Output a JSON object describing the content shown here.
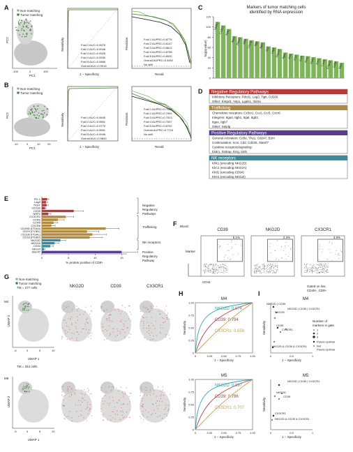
{
  "panels": {
    "A": {
      "label": "A",
      "legend": [
        "Non-matching",
        "Tumor matching"
      ],
      "pca_xlabel": "PC1",
      "pca_ylabel": "PC2",
      "pca_xticks": [
        "-100",
        "0",
        "100"
      ],
      "roc_xlabel": "1 − Specificity",
      "roc_ylabel": "Sensitivity",
      "roc_legend": [
        "Fold 1 AUC=0.9878",
        "Fold 2 AUC=0.9948",
        "Fold 3 AUC=0.9925",
        "Fold 4 AUC=0.9930",
        "Fold 5 AUC=0.9886",
        "Overall AUC=0.9916"
      ],
      "pr_xlabel": "Recall",
      "pr_ylabel": "Precision",
      "pr_legend": [
        "Fold 1 AUPRC=0.8776",
        "Fold 2 AUPRC=0.8147",
        "Fold 3 AUPRC=0.8812",
        "Fold 4 AUPRC=0.8758",
        "Fold 5 AUPRC=0.8532",
        "Overall AUPRC=0.8492",
        "No skill"
      ]
    },
    "B": {
      "label": "B",
      "legend": [
        "Non-matching",
        "Tumor matching"
      ],
      "pca_xlabel": "PC1",
      "pca_ylabel": "PC2",
      "pca_xticks": [
        "-10",
        "0",
        "10",
        "20"
      ],
      "roc_xlabel": "1 − Specificity",
      "roc_ylabel": "Sensitivity",
      "roc_legend": [
        "Fold 1 AUC=0.9845",
        "Fold 2 AUC=0.9801",
        "Fold 3 AUC=0.9770",
        "Fold 4 AUC=0.9891",
        "Fold 5 AUC=0.9946",
        "Overall AUC=0.9849"
      ],
      "pr_xlabel": "Recall",
      "pr_ylabel": "Precision",
      "pr_legend": [
        "Fold 1 AUPRC=0.7098",
        "Fold 2 AUPRC=0.7994",
        "Fold 3 AUPRC=0.7523",
        "Fold 4 AUPRC=0.7837",
        "Fold 5 AUPRC=0.8752",
        "Overall AUPRC=0.7724",
        "No skill"
      ]
    },
    "C": {
      "label": "C",
      "title_lines": [
        "Markers of tumor matching cells",
        "identified by RNA expression"
      ],
      "ylabel": "-log(q-value)"
    },
    "D": {
      "label": "D",
      "sections": [
        {
          "header": "Negative Regulatory Pathways",
          "color": "#b23b3b",
          "lines": [
            "Inhibitory Receptors: Pdcd1, Lag3, Tigit, Cd160",
            "Other: Entpd1, Nrp1, Lgals1, Il10ra"
          ]
        },
        {
          "header": "Trafficking",
          "color": "#b08a3e",
          "lines": [
            "Chemokine receptors: Cx3cr1, Ccr2, Ccr5, Cxcr6",
            "Integrins: Itga4, Itgb1, Itgal, Itgb2,",
            "Itgax, Itgb7",
            "Other: Selplg"
          ]
        },
        {
          "header": "Positive Regulatory Pathways",
          "color": "#5a3c96",
          "lines": [
            "General Activation: Cd3e, Thy1, Cd247, B2m",
            "Costimulation: Icos, Cd2, Cd226, Slamf7",
            "Cytokine receptors/signaling:",
            "Il18r1, Il18rap, Il2rg, Il2rb"
          ]
        },
        {
          "header": "NK receptors",
          "color": "#3a8a99",
          "lines": [
            "Klrk1 (encoding NKG2D)",
            "Klrc1 (encoding NKG2A)",
            "Klrd1 (encoding CD94)",
            "Klre1 (encoding NKG2I)"
          ]
        }
      ]
    },
    "E": {
      "label": "E",
      "xlabel": "% protein positive of CD8+",
      "groups": [
        "Negative Regulatory Pathways",
        "Trafficking",
        "NK receptors",
        "Positive Regulatory Pathway"
      ]
    },
    "F": {
      "label": "F",
      "blood": "Blood:",
      "plots": [
        {
          "title": "CD39",
          "pct": "5.1%"
        },
        {
          "title": "NKG2D",
          "pct": "2.3%"
        },
        {
          "title": "CX3CR1",
          "pct": "3.8%"
        }
      ],
      "ylabel": "Marker",
      "xlabel": "CD44",
      "gate_note": [
        "Gated on live,",
        "CD45+, CD8+"
      ]
    },
    "G": {
      "label": "G",
      "legend": [
        "Non-matching",
        "Tumor matching"
      ],
      "col_titles": [
        "NKG2D",
        "CD39",
        "CX3CR1"
      ],
      "rows": [
        {
          "name": "M4",
          "tm": "TM = 277 cells"
        },
        {
          "name": "M5",
          "tm": "TM = 344 cells"
        }
      ],
      "xlabel": "UMAP 1",
      "ylabel": "UMAP 2",
      "xticks": [
        "-5",
        "0",
        "5",
        "10"
      ]
    },
    "H": {
      "label": "H",
      "plots": [
        {
          "title": "M4",
          "curves": [
            {
              "label": "NKG2D: 0.874",
              "color": "#2aa7b8"
            },
            {
              "label": "CD39: 0.794",
              "color": "#b23b3b"
            },
            {
              "label": "CX3CR1: 0.659",
              "color": "#c9a449"
            }
          ]
        },
        {
          "title": "M5",
          "curves": [
            {
              "label": "NKG2D: 0.897",
              "color": "#2aa7b8"
            },
            {
              "label": "CD39: 0.796",
              "color": "#b23b3b"
            },
            {
              "label": "CX3CR1: 0.707",
              "color": "#c9a449"
            }
          ]
        }
      ],
      "xlabel": "1 − Specificity",
      "ylabel": "Sensitivity",
      "ticks": [
        "0",
        "0.25",
        "0.50",
        "0.75",
        "1.00"
      ]
    },
    "I": {
      "label": "I",
      "plots": [
        {
          "title": "M4",
          "annotations": [
            "NKG2D | CD39",
            "NKG2D | CD39 | CX3CR1",
            "NKG2D",
            "CD39",
            "CX3CR1",
            "NKG2D & CD39 & CX3CR1"
          ]
        },
        {
          "title": "M5",
          "annotations": [
            "NKG2D | CD39 | CX3CR1",
            "NKG2D",
            "CD39",
            "CX3CR1",
            "NKG2D & CD39 & CX3CR1"
          ]
        }
      ],
      "legend_title": [
        "Number of",
        "markers in gate"
      ],
      "legend_items": [
        "1",
        "2",
        "3"
      ],
      "pareto": [
        "Pareto-optimal",
        "Not",
        "Pareto-optimal"
      ],
      "xlabel": "1 − Specificity",
      "ylabel": "Sensitivity",
      "ticks": [
        "0",
        "0.5",
        "1"
      ]
    }
  },
  "chart_data": [
    {
      "type": "bar",
      "title": "Markers of tumor matching cells identified by RNA expression",
      "ylabel": "-log(q-value)",
      "ylim": [
        0,
        120
      ],
      "yticks": [
        0,
        20,
        40,
        60,
        80,
        100,
        120
      ],
      "categories": [
        "Lgals1",
        "Cx3cr1",
        "Klrk1",
        "Itga4",
        "Pdcd1",
        "Il2rb",
        "Cd160",
        "Tigit",
        "Itgb1",
        "Cd2",
        "Lag3",
        "Slamf7",
        "Itgax",
        "Icos",
        "Ccr2",
        "Ccr5",
        "Klre1",
        "Il18r1",
        "Klrc1",
        "Cxcr6",
        "Entpd1",
        "Cd94",
        "Nrp1"
      ],
      "values": [
        110,
        103,
        96,
        82,
        80,
        77,
        74,
        72,
        70,
        62,
        60,
        57,
        50,
        48,
        46,
        44,
        43,
        41,
        39,
        37,
        35,
        33,
        30
      ],
      "color": "#7fb55a"
    },
    {
      "type": "bar",
      "orientation": "horizontal",
      "xlabel": "% protein positive of CD8+",
      "xlim": [
        0,
        16
      ],
      "xticks": [
        0,
        5,
        10,
        15
      ],
      "categories": [
        "PD-1",
        "Lag3",
        "TIGIT",
        "CD160",
        "CD39",
        "NRP1",
        "CX3CR1",
        "CCR2",
        "CCR5",
        "CXCR6",
        "CD49D (ITGA4)",
        "CD29 (ITGB1)",
        "CD11B (ITGAL)",
        "CD18 (ITGB2)",
        "NKG2D",
        "NKG2A",
        "CD94",
        "NKG2I",
        "Slamf7"
      ],
      "values": [
        1.0,
        0.8,
        0.9,
        0.6,
        6.0,
        1.2,
        4.5,
        3.0,
        2.2,
        1.8,
        12.0,
        8.5,
        9.5,
        9.0,
        3.5,
        2.4,
        1.6,
        0.4,
        15.0
      ],
      "errors": [
        0.3,
        0.3,
        0.3,
        0.2,
        1.8,
        0.5,
        1.5,
        1.2,
        0.8,
        0.7,
        2.5,
        2.2,
        2.6,
        2.4,
        1.0,
        0.8,
        0.6,
        0.2,
        3.0
      ],
      "colors": [
        "#b23b3b",
        "#b23b3b",
        "#b23b3b",
        "#b23b3b",
        "#b23b3b",
        "#b23b3b",
        "#b08a3e",
        "#b08a3e",
        "#b08a3e",
        "#b08a3e",
        "#b08a3e",
        "#b08a3e",
        "#b08a3e",
        "#b08a3e",
        "#3a8a99",
        "#3a8a99",
        "#3a8a99",
        "#3a8a99",
        "#5a3c96"
      ]
    }
  ]
}
